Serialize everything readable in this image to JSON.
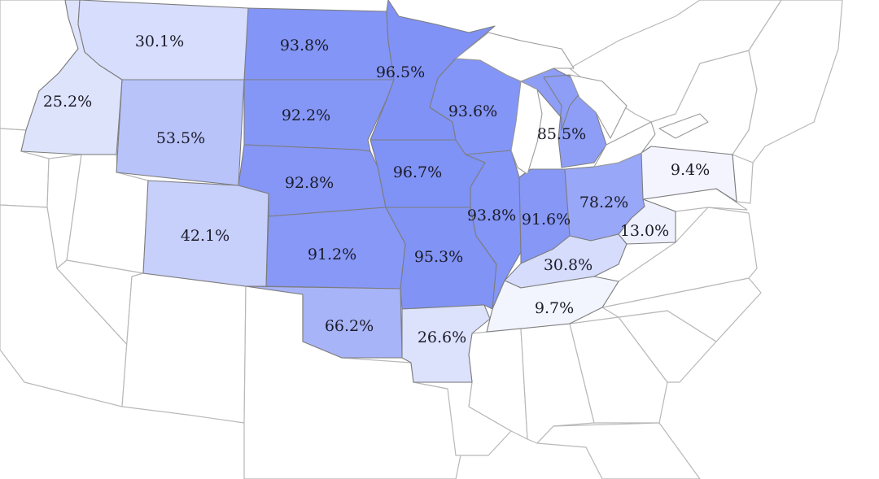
{
  "map": {
    "scale_colors": {
      "low": "#ffffff",
      "high": "#7b8ef5"
    },
    "states": [
      {
        "id": "idaho",
        "label": "25.2%",
        "value": 25.2
      },
      {
        "id": "montana",
        "label": "30.1%",
        "value": 30.1
      },
      {
        "id": "wyoming",
        "label": "53.5%",
        "value": 53.5
      },
      {
        "id": "colorado",
        "label": "42.1%",
        "value": 42.1
      },
      {
        "id": "north-dakota",
        "label": "93.8%",
        "value": 93.8
      },
      {
        "id": "south-dakota",
        "label": "92.2%",
        "value": 92.2
      },
      {
        "id": "nebraska",
        "label": "92.8%",
        "value": 92.8
      },
      {
        "id": "kansas",
        "label": "91.2%",
        "value": 91.2
      },
      {
        "id": "oklahoma",
        "label": "66.2%",
        "value": 66.2
      },
      {
        "id": "minnesota",
        "label": "96.5%",
        "value": 96.5
      },
      {
        "id": "iowa",
        "label": "96.7%",
        "value": 96.7
      },
      {
        "id": "missouri",
        "label": "95.3%",
        "value": 95.3
      },
      {
        "id": "arkansas",
        "label": "26.6%",
        "value": 26.6
      },
      {
        "id": "wisconsin",
        "label": "93.6%",
        "value": 93.6
      },
      {
        "id": "illinois",
        "label": "93.8%",
        "value": 93.8
      },
      {
        "id": "michigan",
        "label": "85.5%",
        "value": 85.5
      },
      {
        "id": "indiana",
        "label": "91.6%",
        "value": 91.6
      },
      {
        "id": "ohio",
        "label": "78.2%",
        "value": 78.2
      },
      {
        "id": "kentucky",
        "label": "30.8%",
        "value": 30.8
      },
      {
        "id": "tennessee",
        "label": "9.7%",
        "value": 9.7
      },
      {
        "id": "west-virginia",
        "label": "13.0%",
        "value": 13.0
      },
      {
        "id": "pennsylvania",
        "label": "9.4%",
        "value": 9.4
      }
    ]
  }
}
